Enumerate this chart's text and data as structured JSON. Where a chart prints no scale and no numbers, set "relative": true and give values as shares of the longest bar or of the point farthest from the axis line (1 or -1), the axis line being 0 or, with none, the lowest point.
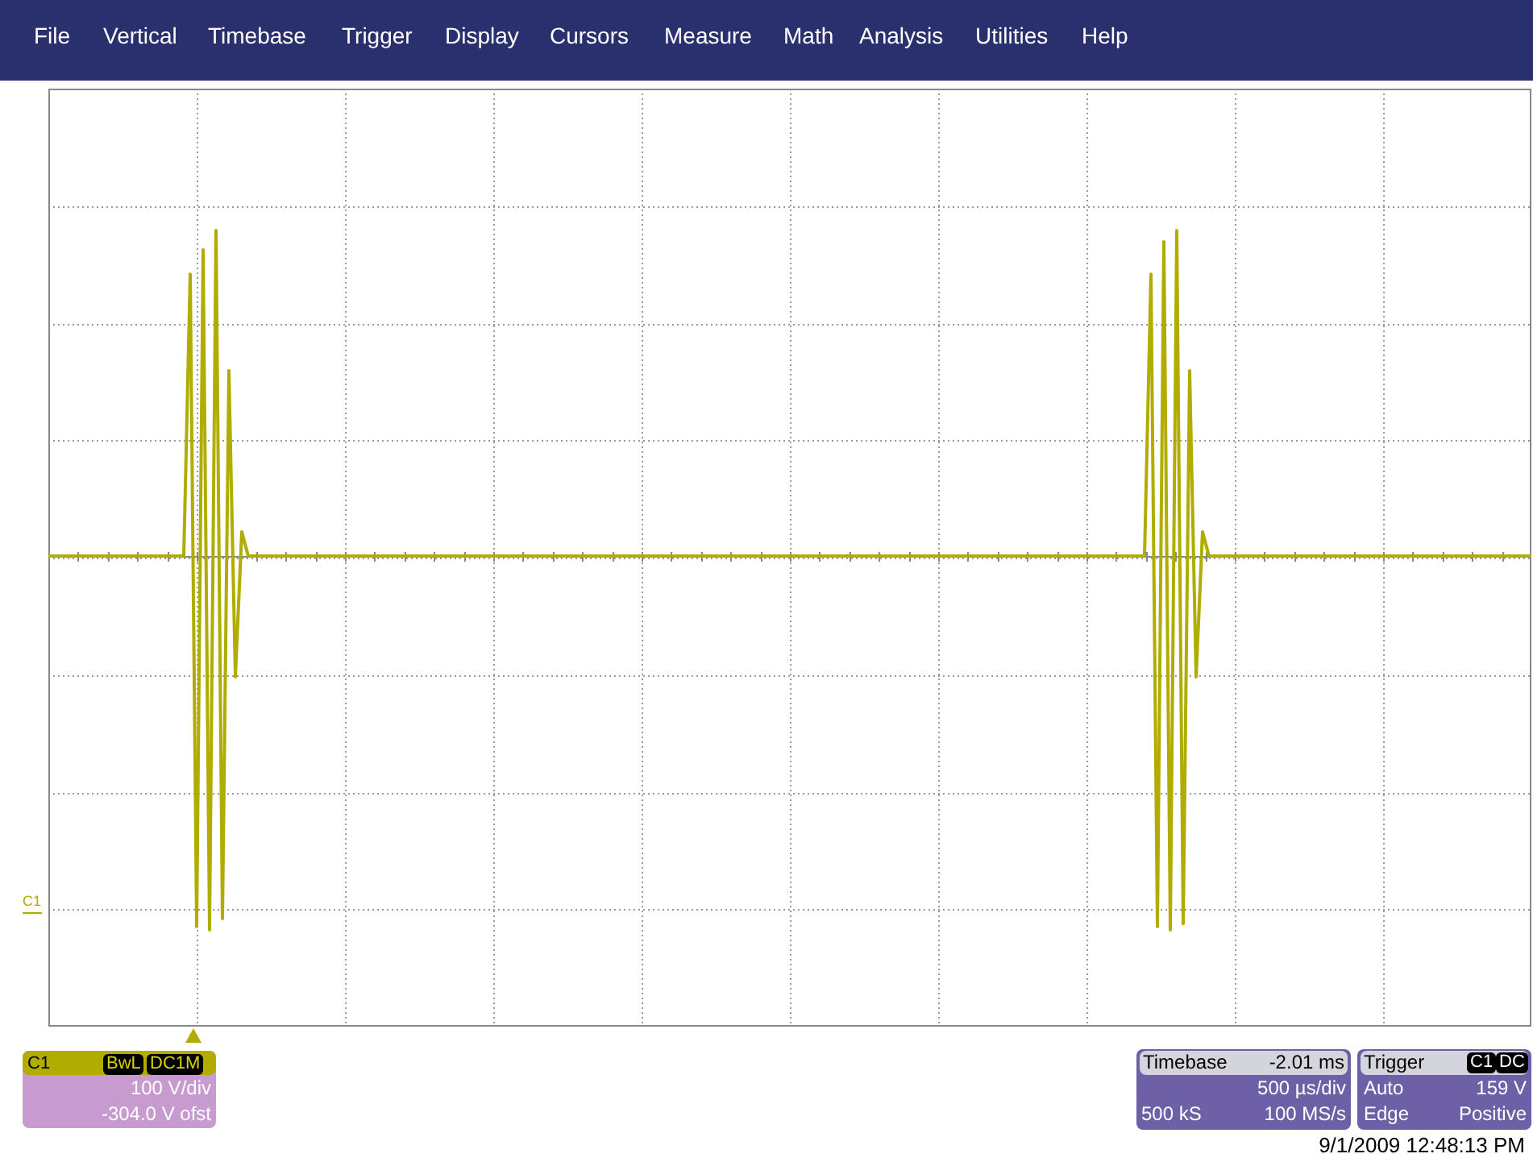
{
  "chart_data": {
    "type": "line",
    "relative": true,
    "grid": true,
    "color": "#b0ac00",
    "categories": [
      null,
      null,
      null,
      null,
      null,
      null,
      null,
      null,
      null,
      null,
      null,
      null,
      null,
      null,
      null,
      null,
      null,
      null,
      null,
      null,
      null,
      null,
      null,
      null,
      null,
      null,
      null,
      null,
      null,
      null,
      null,
      null,
      null,
      null,
      null,
      null,
      null,
      null,
      null,
      null,
      null,
      null,
      null,
      null,
      null,
      null,
      null,
      null,
      null,
      null,
      null,
      null,
      null,
      null,
      null,
      null,
      null,
      null,
      null,
      null,
      null,
      null,
      null,
      null,
      null,
      null,
      null,
      null,
      null,
      null,
      null,
      null,
      null,
      null,
      null,
      null,
      null,
      null,
      null,
      null,
      null,
      null,
      null,
      null,
      null,
      null,
      null,
      null,
      null,
      null,
      null,
      null,
      null,
      null,
      null,
      null,
      null,
      null,
      null,
      null,
      null,
      null,
      null,
      null,
      null,
      null,
      null,
      null,
      null,
      null,
      null,
      null,
      null,
      null,
      null,
      null,
      null,
      null,
      null,
      null,
      null,
      null,
      null,
      null,
      null,
      null,
      null,
      null,
      null,
      null,
      null,
      null,
      null,
      null,
      null,
      null,
      null,
      null,
      null,
      null,
      null,
      null,
      null,
      null,
      null,
      null,
      null,
      null,
      null,
      null,
      null,
      null,
      null,
      null,
      null,
      null,
      null,
      null,
      null,
      null,
      null,
      null,
      null,
      null,
      null,
      null,
      null,
      null,
      null,
      null,
      null,
      null,
      null,
      null,
      null,
      null,
      null,
      null,
      null,
      null,
      null,
      null,
      null,
      null,
      null,
      null,
      null,
      null,
      null,
      null,
      null,
      null,
      null,
      null,
      null,
      null,
      null,
      null,
      null,
      null,
      null,
      null,
      null,
      null,
      null,
      null,
      null,
      null,
      null,
      null,
      null,
      null,
      null,
      null,
      null,
      null,
      null,
      null,
      null,
      null,
      null,
      null,
      null,
      null,
      null,
      null,
      null,
      null,
      null,
      null,
      null
    ],
    "values": [
      0,
      0,
      0,
      0,
      0,
      0,
      0,
      0,
      0,
      0,
      0,
      0,
      0,
      0,
      0,
      0,
      0,
      0,
      0,
      0,
      0,
      0,
      0.754,
      -0.991,
      0.819,
      -1,
      0.871,
      -0.97,
      0.496,
      -0.323,
      0.065,
      0,
      0,
      0,
      0,
      0,
      0,
      0,
      0,
      0,
      0,
      0,
      0,
      0,
      0,
      0,
      0,
      0,
      0,
      0,
      0,
      0,
      0,
      0,
      0,
      0,
      0,
      0,
      0,
      0,
      0,
      0,
      0,
      0,
      0,
      0,
      0,
      0,
      0,
      0,
      0,
      0,
      0,
      0,
      0,
      0,
      0,
      0,
      0,
      0,
      0,
      0,
      0,
      0,
      0,
      0,
      0,
      0,
      0,
      0,
      0,
      0,
      0,
      0,
      0,
      0,
      0,
      0,
      0,
      0,
      0,
      0,
      0,
      0,
      0,
      0,
      0,
      0,
      0,
      0,
      0,
      0,
      0,
      0,
      0,
      0,
      0,
      0,
      0,
      0,
      0,
      0,
      0,
      0,
      0,
      0,
      0,
      0,
      0,
      0,
      0,
      0,
      0,
      0,
      0,
      0,
      0,
      0,
      0,
      0,
      0,
      0,
      0,
      0,
      0,
      0,
      0,
      0,
      0,
      0,
      0,
      0,
      0,
      0,
      0,
      0,
      0,
      0,
      0,
      0,
      0,
      0,
      0,
      0,
      0,
      0,
      0,
      0,
      0,
      0,
      0,
      0.754,
      -0.991,
      0.841,
      -1,
      0.871,
      -0.983,
      0.496,
      -0.323,
      0.065,
      0,
      0,
      0,
      0,
      0,
      0,
      0,
      0,
      0,
      0,
      0,
      0,
      0,
      0,
      0,
      0,
      0,
      0,
      0,
      0,
      0,
      0,
      0,
      0,
      0,
      0,
      0,
      0,
      0,
      0,
      0,
      0,
      0,
      0,
      0,
      0,
      0,
      0,
      0,
      0,
      0,
      0,
      0,
      0,
      0,
      0,
      0,
      0,
      0,
      0,
      0
    ],
    "annotations": [
      "File",
      "Vertical",
      "Timebase",
      "Trigger",
      "Display",
      "Cursors",
      "Measure",
      "Math",
      "Analysis",
      "Utilities",
      "Help",
      "C1",
      "C1",
      "BwL",
      "DC1M",
      "100 V/div",
      "-304.0 V ofst",
      "Timebase",
      "-2.01 ms",
      "500 µs/div",
      "500 kS",
      "100 MS/s",
      "Trigger",
      "C1",
      "DC",
      "Auto",
      "159 V",
      "Edge",
      "Positive",
      "9/1/2009 12:48:13 PM"
    ]
  }
}
